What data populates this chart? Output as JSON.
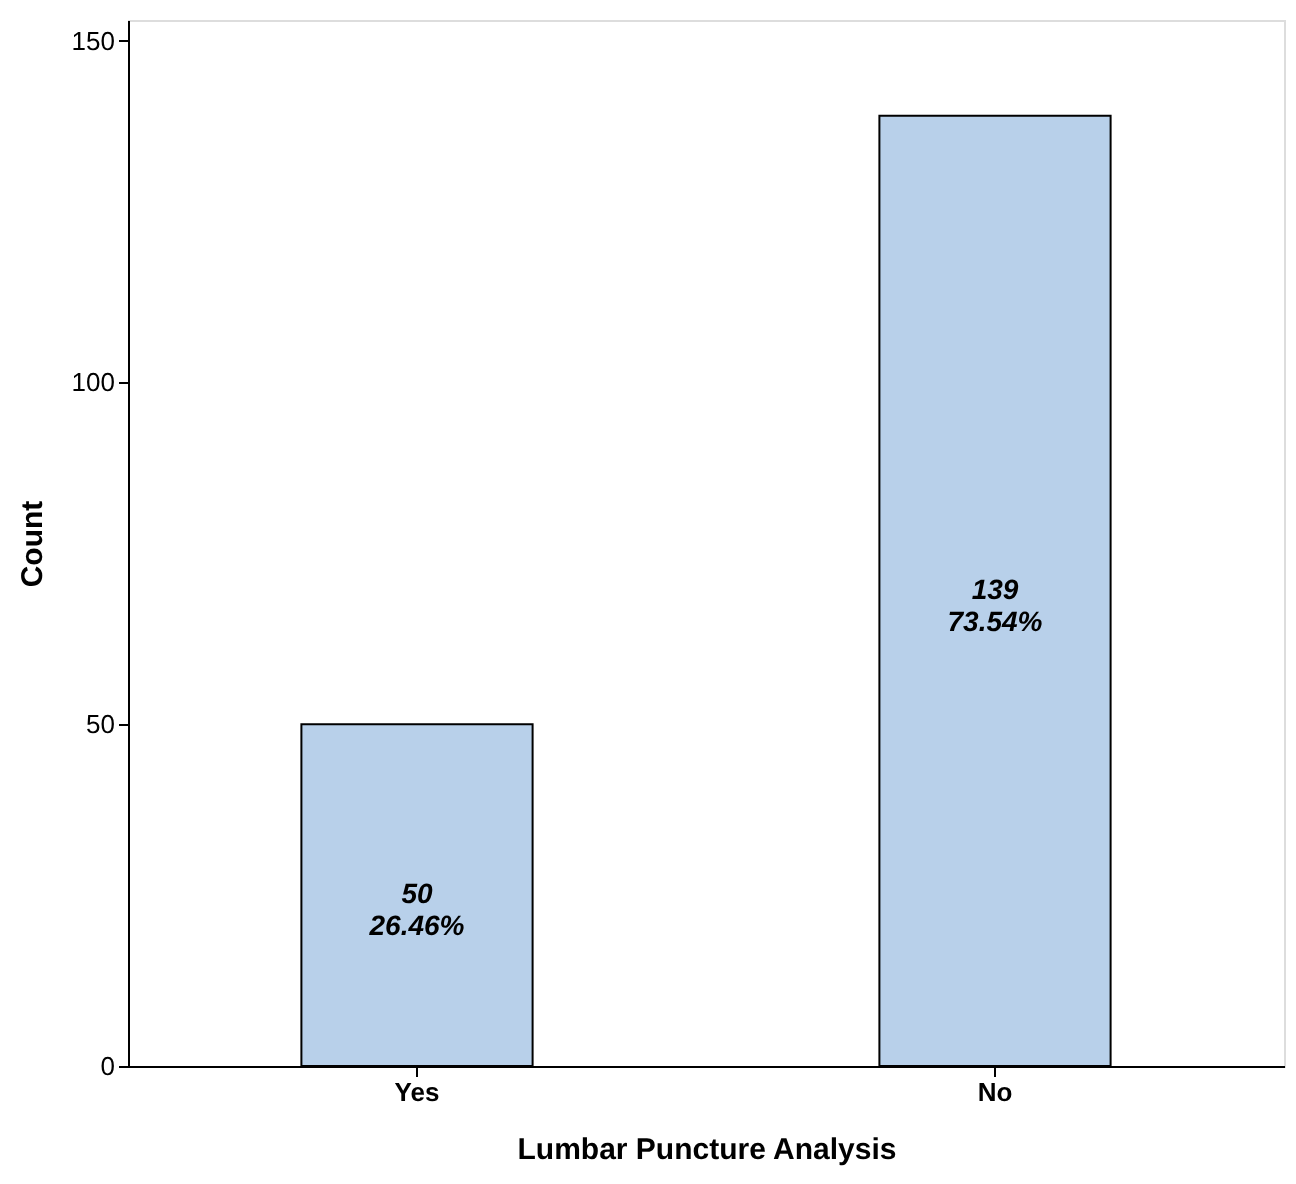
{
  "chart_data": {
    "type": "bar",
    "xlabel": "Lumbar Puncture Analysis",
    "ylabel": "Count",
    "categories": [
      "Yes",
      "No"
    ],
    "values": [
      50,
      139
    ],
    "color": "#b8d0ea",
    "value_labels": [
      "50\n26.46%",
      "139\n73.54%"
    ],
    "ylim": [
      0,
      153
    ],
    "yticks": [
      0,
      50,
      100,
      150
    ],
    "grid": false
  }
}
